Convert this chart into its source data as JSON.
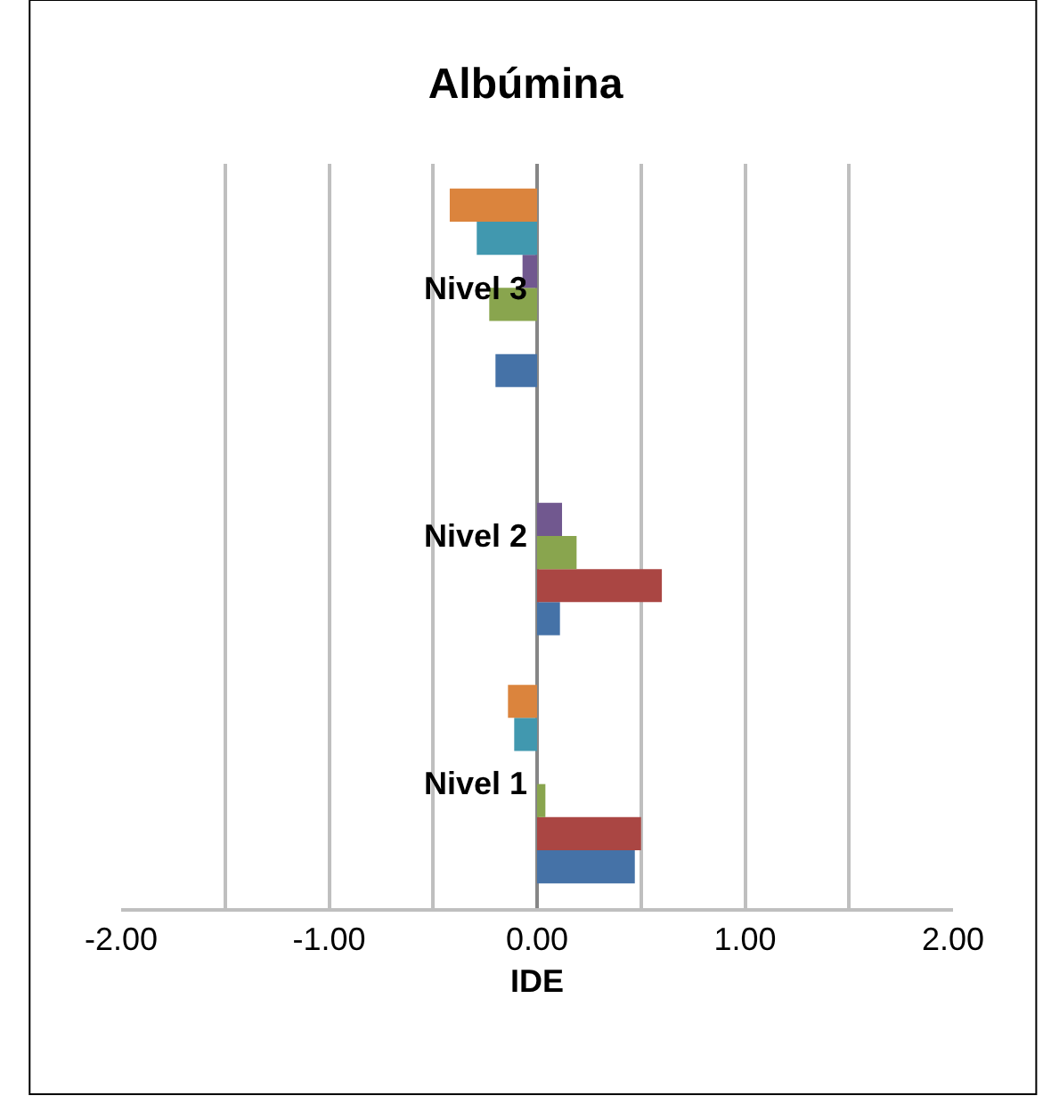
{
  "chart_data": {
    "type": "bar",
    "orientation": "horizontal",
    "title": "Albúmina",
    "xlabel": "IDE",
    "categories": [
      "Nivel 3",
      "Nivel 2",
      "Nivel 1"
    ],
    "series": [
      {
        "color": "#4572a7",
        "values": [
          -0.2,
          0.11,
          0.47
        ]
      },
      {
        "color": "#aa4643",
        "values": [
          null,
          0.6,
          0.5
        ]
      },
      {
        "color": "#89a54e",
        "values": [
          -0.23,
          0.19,
          0.04
        ]
      },
      {
        "color": "#71588f",
        "values": [
          -0.07,
          0.12,
          null
        ]
      },
      {
        "color": "#4198af",
        "values": [
          -0.29,
          null,
          -0.11
        ]
      },
      {
        "color": "#db843d",
        "values": [
          -0.42,
          null,
          -0.14
        ]
      }
    ],
    "xlim": [
      -2,
      2
    ],
    "xticks": [
      {
        "value": -2,
        "label": "-2.00"
      },
      {
        "value": -1.5,
        "label": null
      },
      {
        "value": -1,
        "label": "-1.00"
      },
      {
        "value": -0.5,
        "label": null
      },
      {
        "value": 0,
        "label": "0.00"
      },
      {
        "value": 0.5,
        "label": null
      },
      {
        "value": 1,
        "label": "1.00"
      },
      {
        "value": 1.5,
        "label": null
      },
      {
        "value": 2,
        "label": "2.00"
      }
    ],
    "grid": "x"
  }
}
